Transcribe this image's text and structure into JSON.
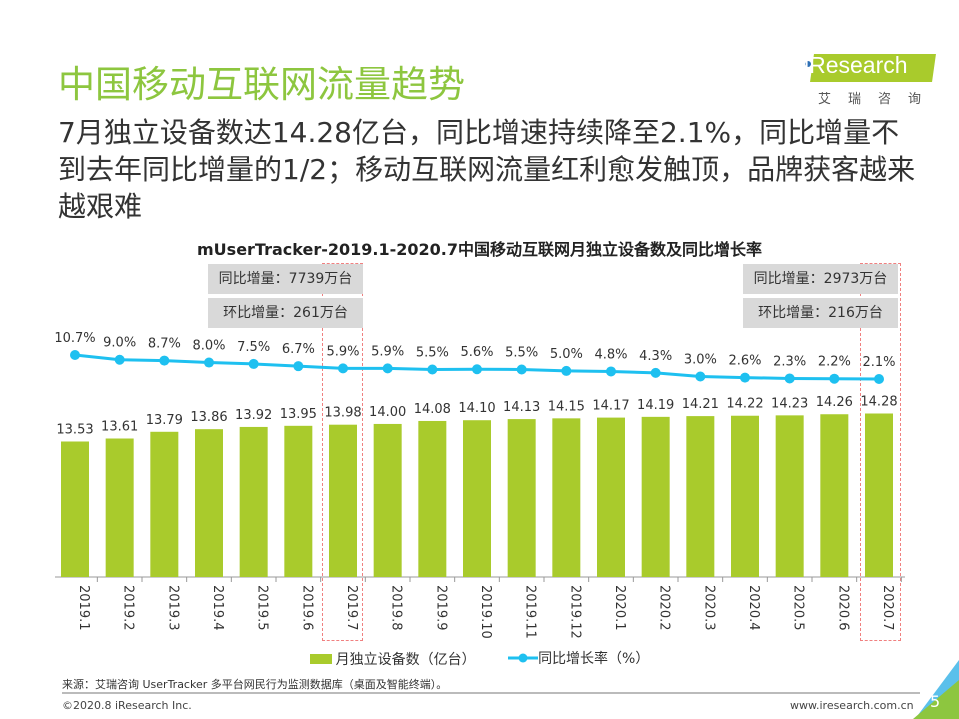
{
  "header": {
    "title": "中国移动互联网流量趋势",
    "subtitle": "7月独立设备数达14.28亿台，同比增速持续降至2.1%，同比增量不到去年同比增量的1/2；移动互联网流量红利愈发触顶，品牌获客越来越艰难"
  },
  "logo": {
    "text": "iResearch",
    "sub": "艾瑞咨询"
  },
  "annotations": {
    "left": {
      "yoy": "同比增量：7739万台",
      "mom": "环比增量：261万台"
    },
    "right": {
      "yoy": "同比增量：2973万台",
      "mom": "环比增量：216万台"
    }
  },
  "chart_data": {
    "type": "bar+line",
    "title": "mUserTracker-2019.1-2020.7中国移动互联网月独立设备数及同比增长率",
    "categories": [
      "2019.1",
      "2019.2",
      "2019.3",
      "2019.4",
      "2019.5",
      "2019.6",
      "2019.7",
      "2019.8",
      "2019.9",
      "2019.10",
      "2019.11",
      "2019.12",
      "2020.1",
      "2020.2",
      "2020.3",
      "2020.4",
      "2020.5",
      "2020.6",
      "2020.7"
    ],
    "series": [
      {
        "name": "月独立设备数（亿台）",
        "type": "bar",
        "color": "#a9cb2c",
        "values": [
          13.53,
          13.61,
          13.79,
          13.86,
          13.92,
          13.95,
          13.98,
          14.0,
          14.08,
          14.1,
          14.13,
          14.15,
          14.17,
          14.19,
          14.21,
          14.22,
          14.23,
          14.26,
          14.28
        ]
      },
      {
        "name": "同比增长率（%）",
        "type": "line",
        "color": "#1ec0f0",
        "values": [
          10.7,
          9.0,
          8.7,
          8.0,
          7.5,
          6.7,
          5.9,
          5.9,
          5.5,
          5.6,
          5.5,
          5.0,
          4.8,
          4.3,
          3.0,
          2.6,
          2.3,
          2.2,
          2.1
        ]
      }
    ],
    "legend": "bottom",
    "grid": false
  },
  "footer": {
    "source": "来源：艾瑞咨询 UserTracker 多平台网民行为监测数据库（桌面及智能终端）。",
    "copyright": "©2020.8 iResearch Inc.",
    "website": "www.iresearch.com.cn",
    "page": "5"
  }
}
